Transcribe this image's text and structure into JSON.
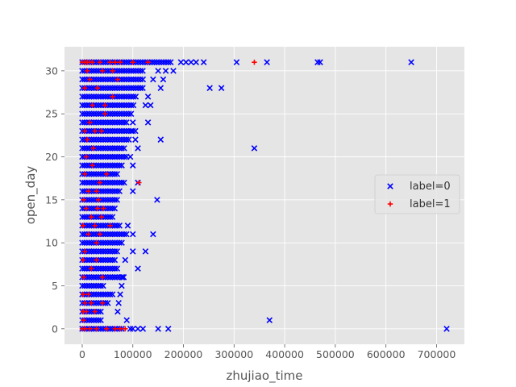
{
  "chart_data": {
    "type": "scatter",
    "xlabel": "zhujiao_time",
    "ylabel": "open_day",
    "xlim": [
      -35000,
      755000
    ],
    "ylim": [
      -1.8,
      32.8
    ],
    "x_ticks": [
      0,
      100000,
      200000,
      300000,
      400000,
      500000,
      600000,
      700000
    ],
    "x_tick_labels": [
      "0",
      "100000",
      "200000",
      "300000",
      "400000",
      "500000",
      "600000",
      "700000"
    ],
    "y_ticks": [
      0,
      5,
      10,
      15,
      20,
      25,
      30
    ],
    "y_tick_labels": [
      "0",
      "5",
      "10",
      "15",
      "20",
      "25",
      "30"
    ],
    "grid": true,
    "legend_placement": "center-right",
    "background": "#e5e5e5",
    "series": [
      {
        "name": "label=0",
        "marker": "x",
        "color": "#0000ff",
        "dense_band_max_x": [
          [
            0,
            82000
          ],
          [
            1,
            40000
          ],
          [
            2,
            38000
          ],
          [
            3,
            55000
          ],
          [
            4,
            60000
          ],
          [
            5,
            45000
          ],
          [
            6,
            80000
          ],
          [
            7,
            70000
          ],
          [
            8,
            65000
          ],
          [
            9,
            72000
          ],
          [
            10,
            80000
          ],
          [
            11,
            90000
          ],
          [
            12,
            75000
          ],
          [
            13,
            60000
          ],
          [
            14,
            65000
          ],
          [
            15,
            70000
          ],
          [
            16,
            78000
          ],
          [
            17,
            85000
          ],
          [
            18,
            70000
          ],
          [
            19,
            80000
          ],
          [
            20,
            90000
          ],
          [
            21,
            85000
          ],
          [
            22,
            95000
          ],
          [
            23,
            100000
          ],
          [
            24,
            90000
          ],
          [
            25,
            100000
          ],
          [
            26,
            105000
          ],
          [
            27,
            110000
          ],
          [
            28,
            120000
          ],
          [
            29,
            115000
          ],
          [
            30,
            120000
          ],
          [
            31,
            175000
          ]
        ],
        "outliers": [
          [
            720000,
            0
          ],
          [
            370000,
            1
          ],
          [
            340000,
            21
          ],
          [
            650000,
            31
          ],
          [
            470000,
            31
          ],
          [
            465000,
            31
          ],
          [
            365000,
            31
          ],
          [
            305000,
            31
          ],
          [
            240000,
            31
          ],
          [
            225000,
            31
          ],
          [
            215000,
            31
          ],
          [
            205000,
            31
          ],
          [
            195000,
            31
          ],
          [
            275000,
            28
          ],
          [
            252000,
            28
          ],
          [
            170000,
            0
          ],
          [
            150000,
            0
          ],
          [
            120000,
            0
          ],
          [
            110000,
            0
          ],
          [
            100000,
            0
          ],
          [
            95000,
            0
          ],
          [
            88000,
            1
          ],
          [
            70000,
            2
          ],
          [
            72000,
            3
          ],
          [
            75000,
            4
          ],
          [
            78000,
            5
          ],
          [
            82000,
            6
          ],
          [
            80000,
            6
          ],
          [
            85000,
            8
          ],
          [
            110000,
            7
          ],
          [
            100000,
            9
          ],
          [
            125000,
            9
          ],
          [
            100000,
            11
          ],
          [
            140000,
            11
          ],
          [
            90000,
            12
          ],
          [
            148000,
            15
          ],
          [
            100000,
            16
          ],
          [
            110000,
            17
          ],
          [
            100000,
            19
          ],
          [
            95000,
            20
          ],
          [
            110000,
            21
          ],
          [
            105000,
            22
          ],
          [
            155000,
            22
          ],
          [
            100000,
            23
          ],
          [
            105000,
            23
          ],
          [
            100000,
            24
          ],
          [
            130000,
            24
          ],
          [
            125000,
            26
          ],
          [
            130000,
            27
          ],
          [
            155000,
            28
          ],
          [
            140000,
            29
          ],
          [
            150000,
            30
          ],
          [
            165000,
            30
          ],
          [
            180000,
            30
          ],
          [
            160000,
            29
          ],
          [
            120000,
            29
          ],
          [
            115000,
            28
          ],
          [
            135000,
            26
          ]
        ]
      },
      {
        "name": "label=1",
        "marker": "+",
        "color": "#ff0000",
        "points": [
          [
            0,
            0
          ],
          [
            5000,
            0
          ],
          [
            15000,
            0
          ],
          [
            28000,
            0
          ],
          [
            48000,
            0
          ],
          [
            65000,
            0
          ],
          [
            75000,
            0
          ],
          [
            85000,
            0
          ],
          [
            3000,
            1
          ],
          [
            2000,
            2
          ],
          [
            8000,
            2
          ],
          [
            25000,
            2
          ],
          [
            5000,
            3
          ],
          [
            18000,
            3
          ],
          [
            40000,
            3
          ],
          [
            2000,
            4
          ],
          [
            12000,
            4
          ],
          [
            3000,
            6
          ],
          [
            40000,
            6
          ],
          [
            18000,
            7
          ],
          [
            2000,
            8
          ],
          [
            28000,
            8
          ],
          [
            5000,
            9
          ],
          [
            28000,
            10
          ],
          [
            12000,
            11
          ],
          [
            35000,
            11
          ],
          [
            2000,
            12
          ],
          [
            25000,
            12
          ],
          [
            55000,
            12
          ],
          [
            18000,
            13
          ],
          [
            38000,
            13
          ],
          [
            8000,
            14
          ],
          [
            30000,
            14
          ],
          [
            42000,
            14
          ],
          [
            3000,
            15
          ],
          [
            32000,
            15
          ],
          [
            12000,
            16
          ],
          [
            28000,
            16
          ],
          [
            35000,
            17
          ],
          [
            112000,
            17
          ],
          [
            5000,
            18
          ],
          [
            48000,
            18
          ],
          [
            20000,
            19
          ],
          [
            8000,
            20
          ],
          [
            22000,
            21
          ],
          [
            10000,
            22
          ],
          [
            5000,
            23
          ],
          [
            25000,
            23
          ],
          [
            38000,
            23
          ],
          [
            15000,
            24
          ],
          [
            45000,
            25
          ],
          [
            20000,
            26
          ],
          [
            5000,
            28
          ],
          [
            30000,
            28
          ],
          [
            15000,
            29
          ],
          [
            10000,
            30
          ],
          [
            40000,
            30
          ],
          [
            60000,
            30
          ],
          [
            0,
            31
          ],
          [
            5000,
            31
          ],
          [
            10000,
            31
          ],
          [
            15000,
            31
          ],
          [
            20000,
            31
          ],
          [
            35000,
            31
          ],
          [
            55000,
            31
          ],
          [
            65000,
            31
          ],
          [
            75000,
            31
          ],
          [
            100000,
            31
          ],
          [
            130000,
            31
          ],
          [
            340000,
            31
          ],
          [
            45000,
            26
          ],
          [
            60000,
            27
          ],
          [
            70000,
            29
          ]
        ]
      }
    ]
  }
}
